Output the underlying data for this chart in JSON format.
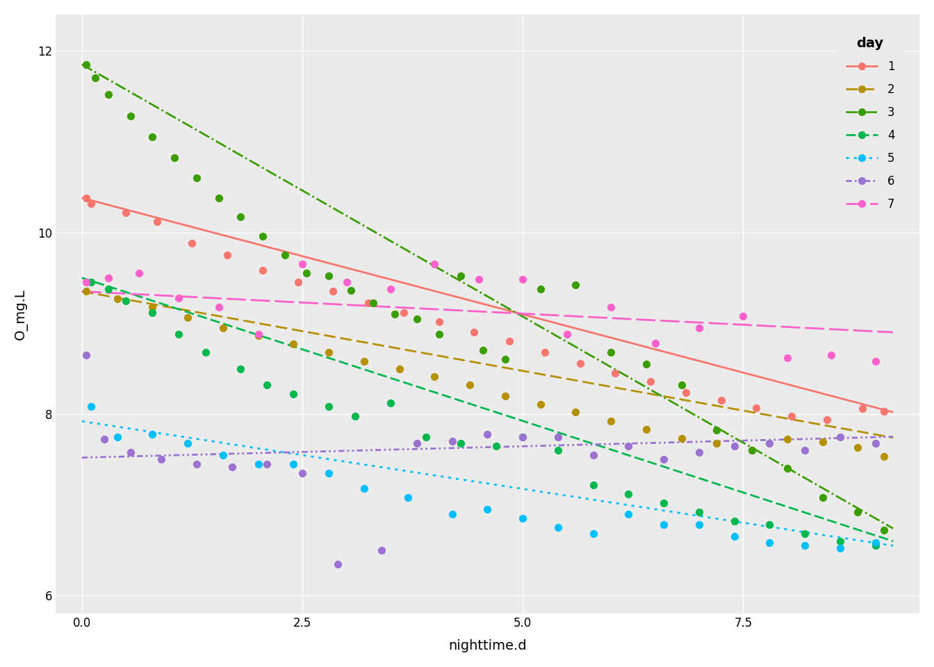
{
  "title": "",
  "xlabel": "nighttime.d",
  "ylabel": "O_mg.L",
  "xlim": [
    -0.3,
    9.5
  ],
  "ylim": [
    5.8,
    12.4
  ],
  "xticks": [
    0.0,
    2.5,
    5.0,
    7.5
  ],
  "yticks": [
    6,
    8,
    10,
    12
  ],
  "background_color": "#EBEBEB",
  "grid_color": "#FFFFFF",
  "legend_title": "day",
  "dot_size": 50,
  "line_width": 2.0,
  "days": {
    "1": {
      "color": "#F8766D",
      "linestyle": "solid"
    },
    "2": {
      "color": "#B59000",
      "linestyle": "dashed"
    },
    "3": {
      "color": "#3B9E00",
      "linestyle": "dashdot3"
    },
    "4": {
      "color": "#00B84E",
      "linestyle": "dashed2"
    },
    "5": {
      "color": "#00BFFF",
      "linestyle": "dotted"
    },
    "6": {
      "color": "#9B72CF",
      "linestyle": "dashdot2"
    },
    "7": {
      "color": "#FF61CC",
      "linestyle": "longdash"
    }
  },
  "scatter_data": {
    "1": {
      "x": [
        0.05,
        0.1,
        0.5,
        0.85,
        1.25,
        1.65,
        2.05,
        2.45,
        2.85,
        3.25,
        3.65,
        4.05,
        4.45,
        4.85,
        5.25,
        5.65,
        6.05,
        6.45,
        6.85,
        7.25,
        7.65,
        8.05,
        8.45,
        8.85,
        9.1
      ],
      "y": [
        10.38,
        10.32,
        10.22,
        10.12,
        9.88,
        9.75,
        9.58,
        9.45,
        9.35,
        9.22,
        9.12,
        9.02,
        8.9,
        8.8,
        8.68,
        8.56,
        8.45,
        8.36,
        8.24,
        8.15,
        8.07,
        7.98,
        7.94,
        8.06,
        8.03
      ]
    },
    "2": {
      "x": [
        0.05,
        0.4,
        0.8,
        1.2,
        1.6,
        2.0,
        2.4,
        2.8,
        3.2,
        3.6,
        4.0,
        4.4,
        4.8,
        5.2,
        5.6,
        6.0,
        6.4,
        6.8,
        7.2,
        7.6,
        8.0,
        8.4,
        8.8,
        9.1
      ],
      "y": [
        9.35,
        9.27,
        9.18,
        9.06,
        8.95,
        8.86,
        8.77,
        8.68,
        8.58,
        8.5,
        8.41,
        8.32,
        8.2,
        8.11,
        8.02,
        7.92,
        7.83,
        7.73,
        7.68,
        7.6,
        7.72,
        7.69,
        7.63,
        7.53
      ]
    },
    "3": {
      "x": [
        0.05,
        0.15,
        0.3,
        0.55,
        0.8,
        1.05,
        1.3,
        1.55,
        1.8,
        2.05,
        2.3,
        2.55,
        2.8,
        3.05,
        3.3,
        3.55,
        3.8,
        4.05,
        4.3,
        4.55,
        4.8,
        5.2,
        5.6,
        6.0,
        6.4,
        6.8,
        7.2,
        7.6,
        8.0,
        8.4,
        8.8,
        9.1
      ],
      "y": [
        11.85,
        11.7,
        11.52,
        11.28,
        11.05,
        10.82,
        10.6,
        10.38,
        10.17,
        9.96,
        9.75,
        9.55,
        9.52,
        9.36,
        9.22,
        9.1,
        9.05,
        8.88,
        9.52,
        8.7,
        8.6,
        9.38,
        9.42,
        8.68,
        8.55,
        8.32,
        7.82,
        7.6,
        7.4,
        7.08,
        6.92,
        6.72
      ]
    },
    "4": {
      "x": [
        0.1,
        0.3,
        0.5,
        0.8,
        1.1,
        1.4,
        1.8,
        2.1,
        2.4,
        2.8,
        3.1,
        3.5,
        3.9,
        4.3,
        4.7,
        5.0,
        5.4,
        5.8,
        6.2,
        6.6,
        7.0,
        7.4,
        7.8,
        8.2,
        8.6,
        9.0
      ],
      "y": [
        9.45,
        9.38,
        9.25,
        9.12,
        8.88,
        8.68,
        8.5,
        8.32,
        8.22,
        8.08,
        7.98,
        8.12,
        7.75,
        7.68,
        7.65,
        7.75,
        7.6,
        7.22,
        7.12,
        7.02,
        6.92,
        6.82,
        6.78,
        6.68,
        6.6,
        6.55
      ]
    },
    "5": {
      "x": [
        0.1,
        0.4,
        0.8,
        1.2,
        1.6,
        2.0,
        2.4,
        2.8,
        3.2,
        3.7,
        4.2,
        4.6,
        5.0,
        5.4,
        5.8,
        6.2,
        6.6,
        7.0,
        7.4,
        7.8,
        8.2,
        8.6,
        9.0
      ],
      "y": [
        8.08,
        7.75,
        7.78,
        7.68,
        7.55,
        7.45,
        7.45,
        7.35,
        7.18,
        7.08,
        6.9,
        6.95,
        6.85,
        6.75,
        6.68,
        6.9,
        6.78,
        6.78,
        6.65,
        6.58,
        6.55,
        6.52,
        6.58
      ]
    },
    "6": {
      "x": [
        0.05,
        0.25,
        0.55,
        0.9,
        1.3,
        1.7,
        2.1,
        2.5,
        2.9,
        3.4,
        3.8,
        4.2,
        4.6,
        5.0,
        5.4,
        5.8,
        6.2,
        6.6,
        7.0,
        7.4,
        7.8,
        8.2,
        8.6,
        9.0
      ],
      "y": [
        8.65,
        7.72,
        7.58,
        7.5,
        7.45,
        7.42,
        7.45,
        7.35,
        6.35,
        6.5,
        7.68,
        7.7,
        7.78,
        7.75,
        7.75,
        7.55,
        7.65,
        7.5,
        7.58,
        7.65,
        7.68,
        7.6,
        7.75,
        7.68
      ]
    },
    "7": {
      "x": [
        0.05,
        0.3,
        0.65,
        1.1,
        1.55,
        2.0,
        2.5,
        3.0,
        3.5,
        4.0,
        4.5,
        5.0,
        5.5,
        6.0,
        6.5,
        7.0,
        7.5,
        8.0,
        8.5,
        9.0
      ],
      "y": [
        9.45,
        9.5,
        9.55,
        9.28,
        9.18,
        8.88,
        9.65,
        9.45,
        9.38,
        9.65,
        9.48,
        9.48,
        8.88,
        9.18,
        8.78,
        8.95,
        9.08,
        8.62,
        8.65,
        8.58
      ]
    }
  },
  "line_data": {
    "1": {
      "x": [
        0.0,
        9.2
      ],
      "y": [
        10.38,
        8.02
      ]
    },
    "2": {
      "x": [
        0.0,
        9.2
      ],
      "y": [
        9.35,
        7.74
      ]
    },
    "3": {
      "x": [
        0.0,
        9.2
      ],
      "y": [
        11.85,
        6.74
      ]
    },
    "4": {
      "x": [
        0.0,
        9.2
      ],
      "y": [
        9.5,
        6.6
      ]
    },
    "5": {
      "x": [
        0.0,
        9.2
      ],
      "y": [
        7.92,
        6.55
      ]
    },
    "6": {
      "x": [
        0.0,
        9.2
      ],
      "y": [
        7.52,
        7.75
      ]
    },
    "7": {
      "x": [
        0.0,
        9.2
      ],
      "y": [
        9.35,
        8.9
      ]
    }
  }
}
